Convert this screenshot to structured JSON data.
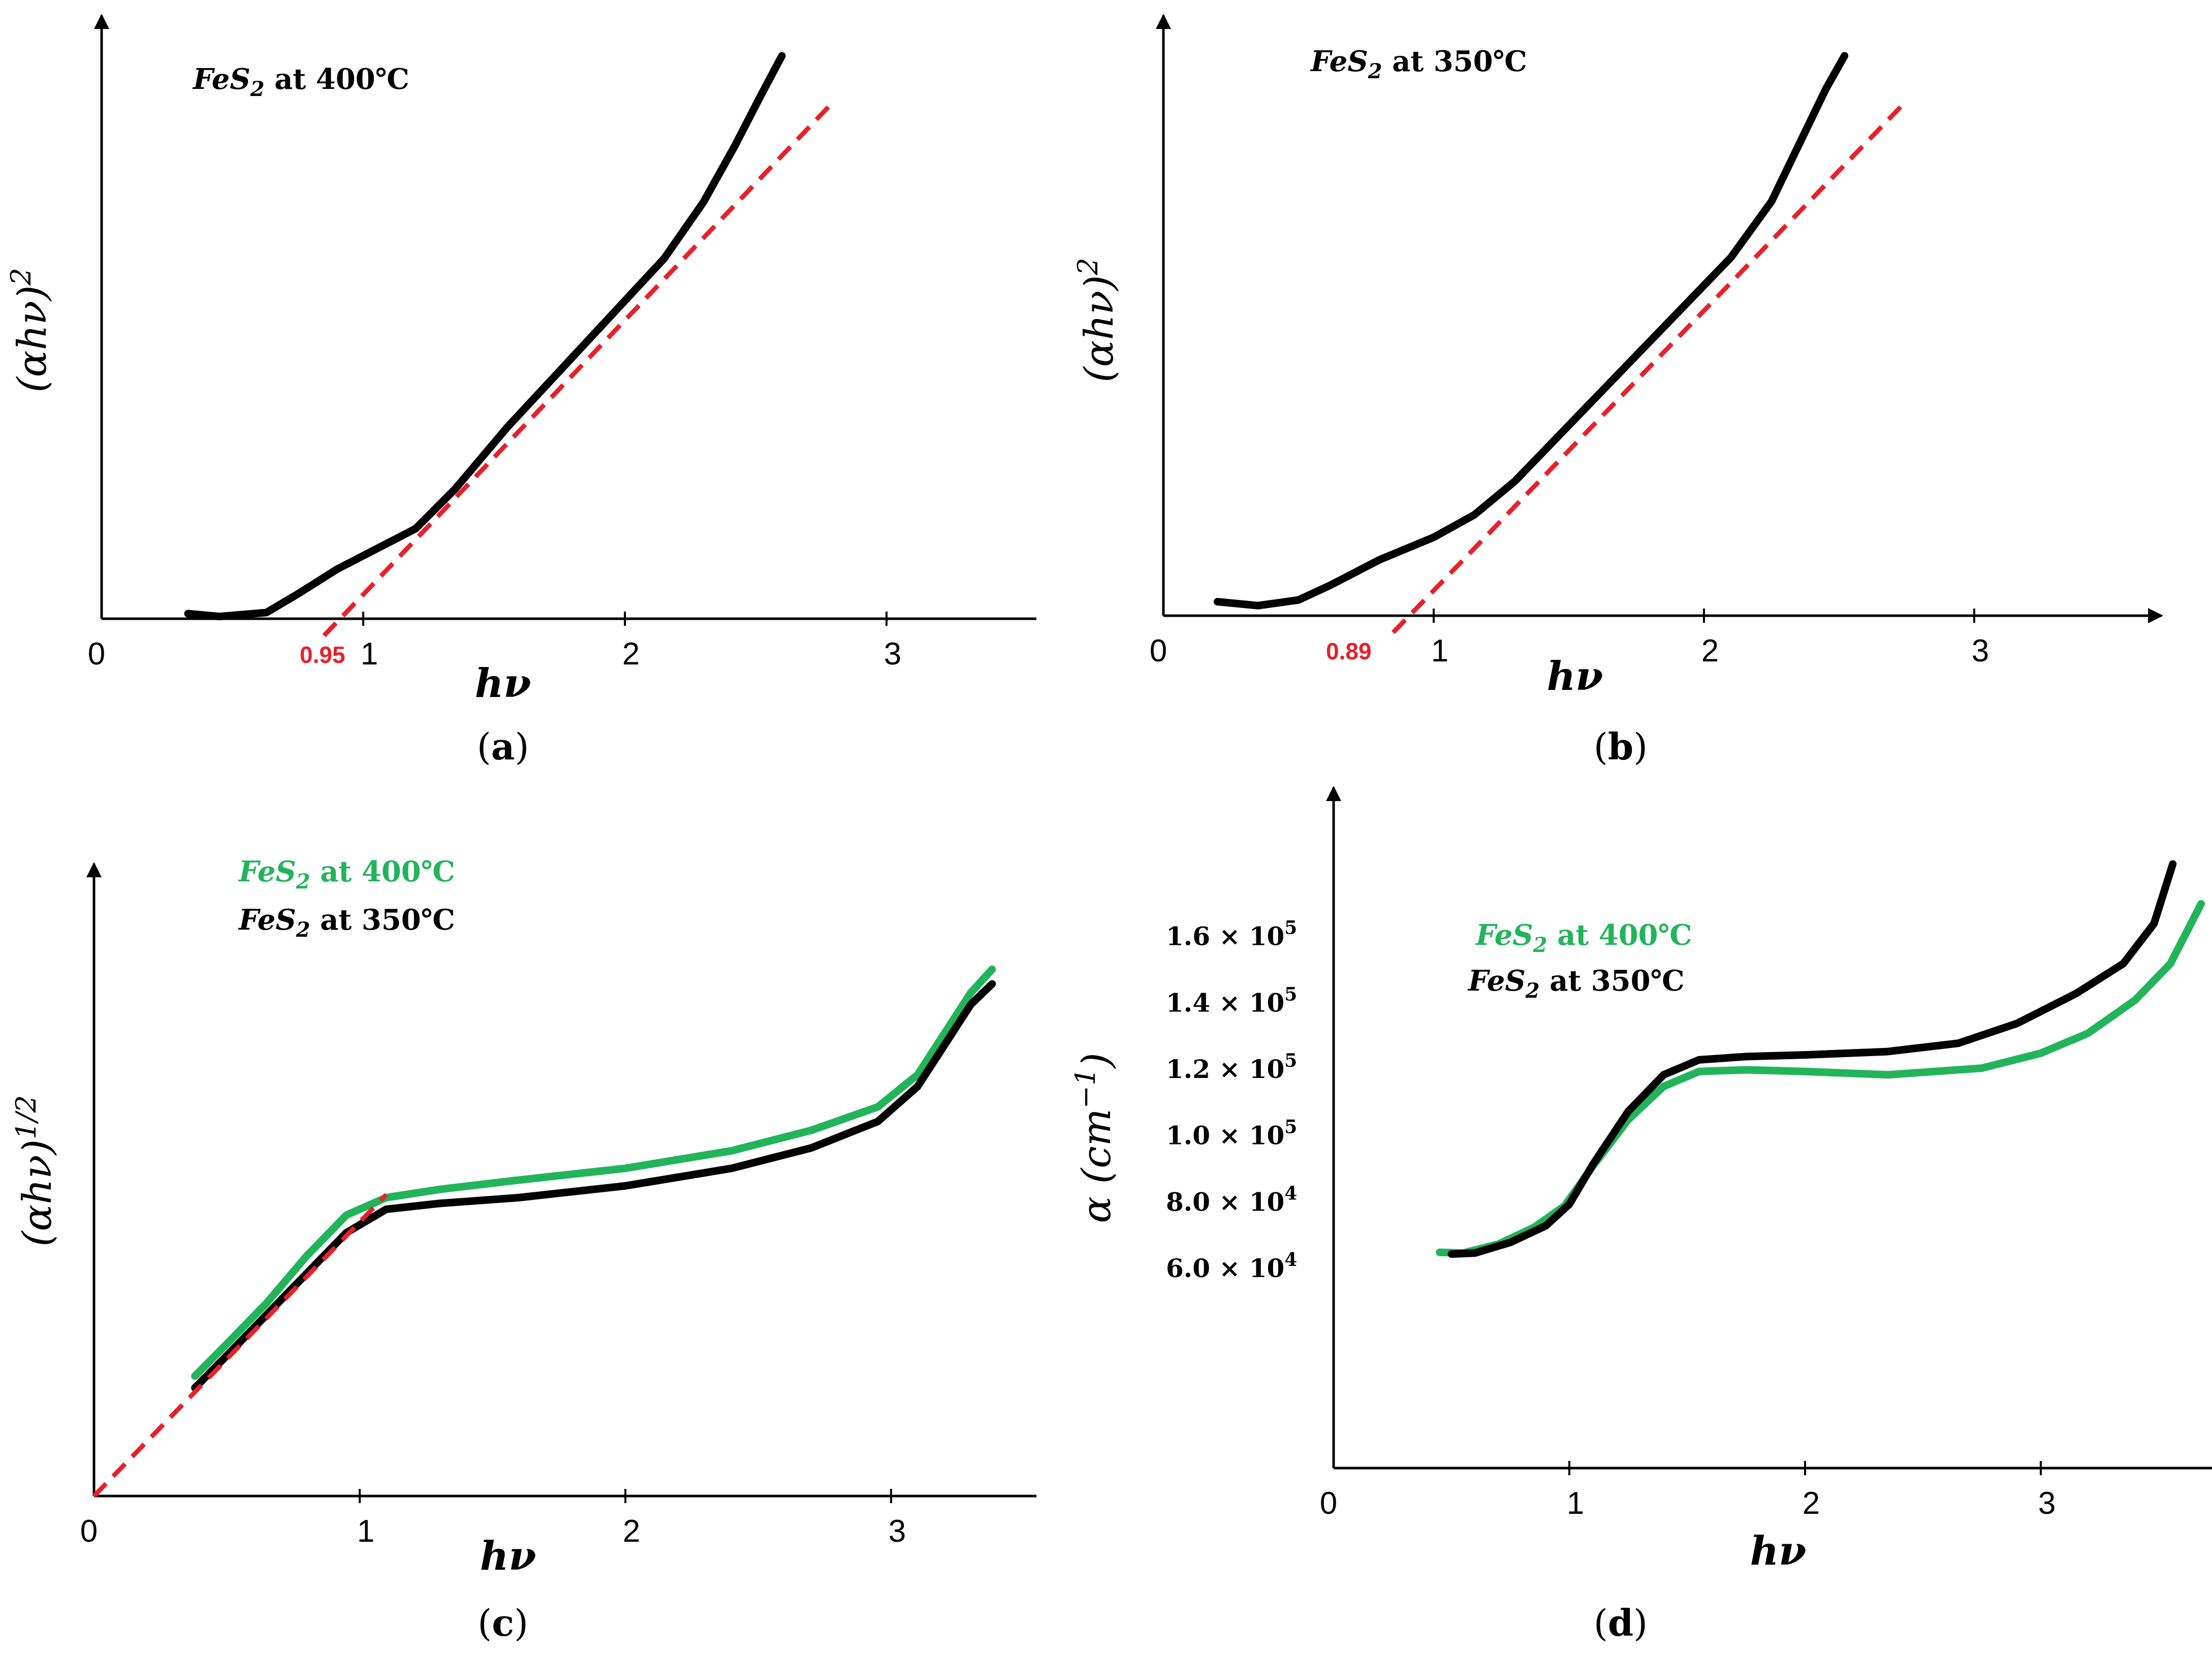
{
  "figure": {
    "colors": {
      "black": "#000000",
      "green": "#22b45a",
      "red": "#e8202a"
    }
  },
  "chart_data": [
    {
      "panel": "a",
      "type": "line",
      "subcaption": "(a)",
      "xlabel": "hν",
      "ylabel": "(αhν)",
      "ylabel_sup": "2",
      "xlim": [
        0,
        3.6
      ],
      "ylim": [
        0,
        1
      ],
      "x_ticks": [
        "0",
        "1",
        "2",
        "3"
      ],
      "legend": [
        {
          "label": "FeS",
          "sub": "2",
          "tail": " at 400℃",
          "color": "#000000"
        }
      ],
      "fit_intercept_label": "0.95",
      "series": [
        {
          "name": "FeS2 at 400℃",
          "color": "#000000",
          "x": [
            0.33,
            0.45,
            0.63,
            0.75,
            0.9,
            1.05,
            1.2,
            1.35,
            1.55,
            1.75,
            1.95,
            2.15,
            2.3,
            2.42,
            2.52,
            2.6
          ],
          "y": [
            0.009,
            0.004,
            0.011,
            0.044,
            0.088,
            0.124,
            0.16,
            0.23,
            0.34,
            0.44,
            0.54,
            0.64,
            0.74,
            0.84,
            0.93,
            1.0
          ]
        },
        {
          "name": "fit",
          "color": "#e8202a",
          "dashed": true,
          "x": [
            0.85,
            2.8
          ],
          "y": [
            -0.03,
            0.92
          ]
        }
      ]
    },
    {
      "panel": "b",
      "type": "line",
      "subcaption": "(b)",
      "xlabel": "hν",
      "ylabel": "(αhν)",
      "ylabel_sup": "2",
      "xlim": [
        0,
        3.6
      ],
      "ylim": [
        0,
        1
      ],
      "x_ticks": [
        "0",
        "1",
        "2",
        "3"
      ],
      "legend": [
        {
          "label": "FeS",
          "sub": "2",
          "tail": " at 350℃",
          "color": "#000000"
        }
      ],
      "fit_intercept_label": "0.89",
      "series": [
        {
          "name": "FeS2 at 350℃",
          "color": "#000000",
          "x": [
            0.2,
            0.35,
            0.5,
            0.62,
            0.8,
            1.0,
            1.15,
            1.3,
            1.5,
            1.7,
            1.9,
            2.1,
            2.25,
            2.35,
            2.45,
            2.52
          ],
          "y": [
            0.025,
            0.018,
            0.028,
            0.055,
            0.1,
            0.14,
            0.18,
            0.24,
            0.34,
            0.44,
            0.54,
            0.64,
            0.74,
            0.84,
            0.94,
            1.0
          ]
        },
        {
          "name": "fit",
          "color": "#e8202a",
          "dashed": true,
          "x": [
            0.85,
            2.75
          ],
          "y": [
            -0.03,
            0.92
          ]
        }
      ]
    },
    {
      "panel": "c",
      "type": "line",
      "subcaption": "(c)",
      "xlabel": "hν",
      "ylabel": "(αhν)",
      "ylabel_sup": "1/2",
      "xlim": [
        0,
        3.6
      ],
      "ylim": [
        0,
        1
      ],
      "x_ticks": [
        "0",
        "1",
        "2",
        "3"
      ],
      "legend": [
        {
          "label": "FeS",
          "sub": "2",
          "tail": " at 400℃",
          "color": "#22b45a"
        },
        {
          "label": "FeS",
          "sub": "2",
          "tail": " at 350℃",
          "color": "#000000"
        }
      ],
      "series": [
        {
          "name": "FeS2 at 400℃",
          "color": "#22b45a",
          "x": [
            0.38,
            0.5,
            0.65,
            0.8,
            0.95,
            1.1,
            1.3,
            1.6,
            2.0,
            2.4,
            2.7,
            2.95,
            3.1,
            3.2,
            3.3,
            3.38
          ],
          "y": [
            0.205,
            0.26,
            0.33,
            0.41,
            0.48,
            0.51,
            0.524,
            0.54,
            0.56,
            0.59,
            0.625,
            0.665,
            0.72,
            0.79,
            0.86,
            0.9
          ]
        },
        {
          "name": "FeS2 at 350℃",
          "color": "#000000",
          "x": [
            0.38,
            0.5,
            0.65,
            0.8,
            0.95,
            1.1,
            1.3,
            1.6,
            2.0,
            2.4,
            2.7,
            2.95,
            3.1,
            3.2,
            3.3,
            3.38
          ],
          "y": [
            0.185,
            0.24,
            0.31,
            0.38,
            0.45,
            0.49,
            0.5,
            0.51,
            0.53,
            0.56,
            0.595,
            0.64,
            0.7,
            0.77,
            0.84,
            0.875
          ]
        },
        {
          "name": "fit",
          "color": "#e8202a",
          "dashed": true,
          "x": [
            0,
            1.1
          ],
          "y": [
            0,
            0.515
          ]
        }
      ]
    },
    {
      "panel": "d",
      "type": "line",
      "subcaption": "(d)",
      "xlabel": "hν",
      "ylabel": "α (cm",
      "ylabel_sup": "−1",
      "ylabel_tail": ")",
      "xlim": [
        0,
        3.7
      ],
      "ylim": [
        0,
        210000
      ],
      "x_ticks": [
        "0",
        "1",
        "2",
        "3"
      ],
      "y_ticks": [
        {
          "value": 60000,
          "mant": "6.0 × 10",
          "exp": "4"
        },
        {
          "value": 80000,
          "mant": "8.0 × 10",
          "exp": "4"
        },
        {
          "value": 100000,
          "mant": "1.0 × 10",
          "exp": "5"
        },
        {
          "value": 120000,
          "mant": "1.2 × 10",
          "exp": "5"
        },
        {
          "value": 140000,
          "mant": "1.4 × 10",
          "exp": "5"
        },
        {
          "value": 160000,
          "mant": "1.6 × 10",
          "exp": "5"
        }
      ],
      "legend": [
        {
          "label": "FeS",
          "sub": "2",
          "tail": " at 400℃",
          "color": "#22b45a"
        },
        {
          "label": "FeS",
          "sub": "2",
          "tail": " at 350℃",
          "color": "#000000"
        }
      ],
      "series": [
        {
          "name": "FeS2 at 400℃",
          "color": "#22b45a",
          "x": [
            0.45,
            0.55,
            0.7,
            0.85,
            0.98,
            1.1,
            1.25,
            1.4,
            1.55,
            1.75,
            2.0,
            2.35,
            2.75,
            3.0,
            3.2,
            3.4,
            3.55,
            3.68
          ],
          "y": [
            65000,
            64800,
            67500,
            72500,
            79000,
            91000,
            105000,
            115000,
            119500,
            120000,
            119500,
            118500,
            120500,
            125000,
            131000,
            141000,
            152000,
            170000
          ]
        },
        {
          "name": "FeS2 at 350℃",
          "color": "#000000",
          "x": [
            0.5,
            0.6,
            0.75,
            0.9,
            1.0,
            1.1,
            1.25,
            1.4,
            1.55,
            1.75,
            2.0,
            2.35,
            2.65,
            2.9,
            3.15,
            3.35,
            3.48,
            3.56
          ],
          "y": [
            64500,
            64800,
            68000,
            73000,
            79500,
            91500,
            107500,
            118500,
            123000,
            124000,
            124500,
            125500,
            128000,
            134000,
            143000,
            152000,
            164000,
            182000
          ]
        }
      ]
    }
  ]
}
